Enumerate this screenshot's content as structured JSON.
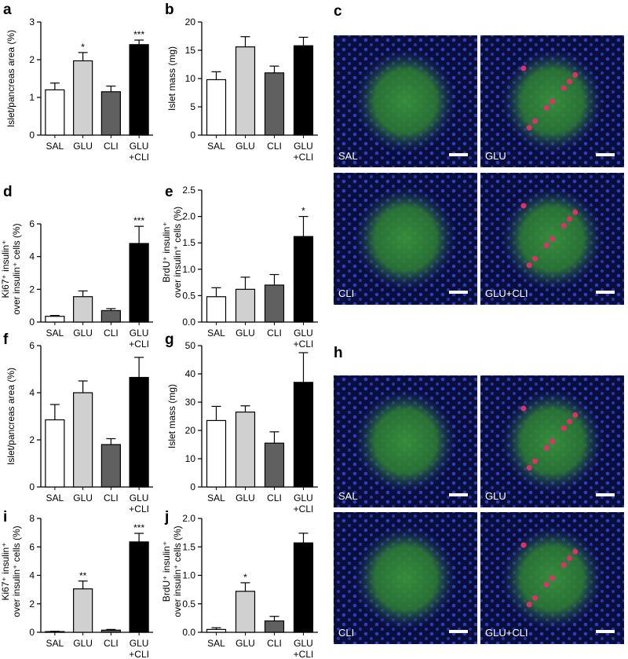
{
  "chart_data": [
    {
      "type": "bar",
      "panel": "a",
      "ylabel": "Islet/pancreas area (%)",
      "categories": [
        "SAL",
        "GLU",
        "CLI",
        "GLU\n+CLI"
      ],
      "values": [
        1.2,
        1.97,
        1.15,
        2.4
      ],
      "errors": [
        0.18,
        0.22,
        0.15,
        0.12
      ],
      "annotations": [
        null,
        "*",
        null,
        "***"
      ],
      "colors": [
        "#ffffff",
        "#d0d0d0",
        "#606060",
        "#000000"
      ],
      "ylim": [
        0,
        3
      ],
      "yticks": [
        0,
        1,
        2,
        3
      ]
    },
    {
      "type": "bar",
      "panel": "b",
      "ylabel": "Islet mass (mg)",
      "categories": [
        "SAL",
        "GLU",
        "CLI",
        "GLU\n+CLI"
      ],
      "values": [
        9.8,
        15.6,
        11,
        15.8
      ],
      "errors": [
        1.4,
        1.8,
        1.2,
        1.5
      ],
      "colors": [
        "#ffffff",
        "#d0d0d0",
        "#606060",
        "#000000"
      ],
      "ylim": [
        0,
        20
      ],
      "yticks": [
        0,
        5,
        10,
        15,
        20
      ]
    },
    {
      "type": "bar",
      "panel": "d",
      "ylabel": "Ki67⁺ insulin⁺\nover insulin⁺ cells (%)",
      "categories": [
        "SAL",
        "GLU",
        "CLI",
        "GLU\n+CLI"
      ],
      "values": [
        0.35,
        1.55,
        0.7,
        4.8
      ],
      "errors": [
        0.05,
        0.35,
        0.12,
        1.05
      ],
      "annotations": [
        null,
        null,
        null,
        "***"
      ],
      "colors": [
        "#ffffff",
        "#d0d0d0",
        "#606060",
        "#000000"
      ],
      "ylim": [
        0,
        6
      ],
      "yticks": [
        0,
        2,
        4,
        6
      ]
    },
    {
      "type": "bar",
      "panel": "e",
      "ylabel": "BrdU⁺ insulin⁺\nover insulin⁺ cells (%)",
      "categories": [
        "SAL",
        "GLU",
        "CLI",
        "GLU\n+CLI"
      ],
      "values": [
        0.48,
        0.62,
        0.7,
        1.62
      ],
      "errors": [
        0.17,
        0.23,
        0.2,
        0.38
      ],
      "annotations": [
        null,
        null,
        null,
        "*"
      ],
      "colors": [
        "#ffffff",
        "#d0d0d0",
        "#606060",
        "#000000"
      ],
      "ylim": [
        0,
        2.5
      ],
      "yticks": [
        {
          "value": 0,
          "label": "0.0"
        },
        0.5,
        {
          "value": 1,
          "label": "1.0"
        },
        1.5,
        {
          "value": 2,
          "label": "2.0"
        },
        2.5
      ]
    },
    {
      "type": "bar",
      "panel": "f",
      "ylabel": "Islet/pancreas area (%)",
      "categories": [
        "SAL",
        "GLU",
        "CLI",
        "GLU\n+CLI"
      ],
      "values": [
        2.85,
        4.0,
        1.8,
        4.65
      ],
      "errors": [
        0.65,
        0.5,
        0.25,
        0.85
      ],
      "colors": [
        "#ffffff",
        "#d0d0d0",
        "#606060",
        "#000000"
      ],
      "ylim": [
        0,
        6
      ],
      "yticks": [
        0,
        2,
        4,
        6
      ]
    },
    {
      "type": "bar",
      "panel": "g",
      "ylabel": "Islet mass (mg)",
      "categories": [
        "SAL",
        "GLU",
        "CLI",
        "GLU\n+CLI"
      ],
      "values": [
        23.5,
        26.5,
        15.5,
        37
      ],
      "errors": [
        5,
        2.2,
        4,
        10.5
      ],
      "colors": [
        "#ffffff",
        "#d0d0d0",
        "#606060",
        "#000000"
      ],
      "ylim": [
        0,
        50
      ],
      "yticks": [
        0,
        10,
        20,
        30,
        40,
        50
      ]
    },
    {
      "type": "bar",
      "panel": "i",
      "ylabel": "Ki67⁺ insulin⁺\nover insulin⁺ cells (%)",
      "categories": [
        "SAL",
        "GLU",
        "CLI",
        "GLU\n+CLI"
      ],
      "values": [
        0.05,
        3.05,
        0.15,
        6.35
      ],
      "errors": [
        0.02,
        0.55,
        0.05,
        0.6
      ],
      "annotations": [
        null,
        "**",
        null,
        "***"
      ],
      "colors": [
        "#ffffff",
        "#d0d0d0",
        "#606060",
        "#000000"
      ],
      "ylim": [
        0,
        8
      ],
      "yticks": [
        0,
        2,
        4,
        6,
        8
      ]
    },
    {
      "type": "bar",
      "panel": "j",
      "ylabel": "BrdU⁺ insulin⁺\nover insulin⁺ cells (%)",
      "categories": [
        "SAL",
        "GLU",
        "CLI",
        "GLU\n+CLI"
      ],
      "values": [
        0.05,
        0.72,
        0.2,
        1.57
      ],
      "errors": [
        0.03,
        0.15,
        0.08,
        0.17
      ],
      "annotations": [
        null,
        "*",
        null,
        null
      ],
      "colors": [
        "#ffffff",
        "#d0d0d0",
        "#606060",
        "#000000"
      ],
      "ylim": [
        0,
        2
      ],
      "yticks": [
        {
          "value": 0,
          "label": "0.0"
        },
        0.5,
        {
          "value": 1,
          "label": "1.0"
        },
        1.5,
        {
          "value": 2,
          "label": "2.0"
        }
      ]
    }
  ],
  "image_panels": [
    {
      "panel": "c",
      "captions": [
        "SAL",
        "GLU",
        "CLI",
        "GLU+CLI"
      ]
    },
    {
      "panel": "h",
      "captions": [
        "SAL",
        "GLU",
        "CLI",
        "GLU+CLI"
      ]
    }
  ]
}
